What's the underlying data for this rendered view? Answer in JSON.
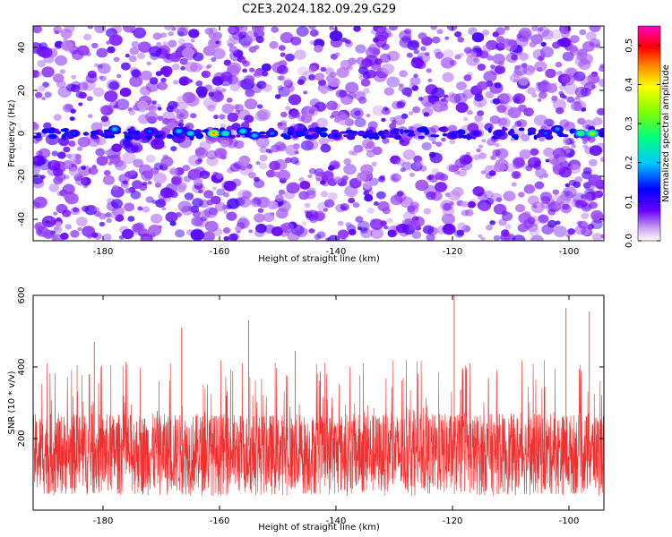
{
  "title": "C2E3.2024.182.09.29.G29",
  "chart_data": [
    {
      "type": "heatmap",
      "xlabel": "Height of straight line (km)",
      "ylabel": "Frequency (Hz)",
      "xlim": [
        -192,
        -94
      ],
      "ylim": [
        -50,
        50
      ],
      "x_ticks": [
        -180,
        -160,
        -140,
        -120,
        -100
      ],
      "y_ticks": [
        -40,
        -20,
        0,
        20,
        40
      ],
      "colorbar": {
        "label": "Normalized spectral amplitude",
        "range": [
          0.0,
          0.55
        ],
        "ticks": [
          0.0,
          0.1,
          0.2,
          0.3,
          0.4,
          0.5
        ],
        "colors": [
          "#ffffff",
          "#ab5ff0",
          "#6a00ff",
          "#0000ff",
          "#00c8ff",
          "#00ff80",
          "#80ff00",
          "#ffff00",
          "#ff8000",
          "#ff0000",
          "#ff00c0"
        ]
      },
      "background_level": 0.05,
      "signal_band_hz": 0,
      "peaks": [
        {
          "x": -185.0,
          "y": 0,
          "value": 0.15
        },
        {
          "x": -178.0,
          "y": 2,
          "value": 0.2
        },
        {
          "x": -172.0,
          "y": 1,
          "value": 0.16
        },
        {
          "x": -167.0,
          "y": 1,
          "value": 0.2
        },
        {
          "x": -165.0,
          "y": 0,
          "value": 0.22
        },
        {
          "x": -161.0,
          "y": 0,
          "value": 0.45
        },
        {
          "x": -159.0,
          "y": 0,
          "value": 0.25
        },
        {
          "x": -156.0,
          "y": 1,
          "value": 0.22
        },
        {
          "x": -154.0,
          "y": -1,
          "value": 0.2
        },
        {
          "x": -151.0,
          "y": 0,
          "value": 0.17
        },
        {
          "x": -140.0,
          "y": -1,
          "value": 0.13
        },
        {
          "x": -120.0,
          "y": -1,
          "value": 0.14
        },
        {
          "x": -116.0,
          "y": 0,
          "value": 0.12
        },
        {
          "x": -112.0,
          "y": 0,
          "value": 0.14
        },
        {
          "x": -104.0,
          "y": 0,
          "value": 0.16
        },
        {
          "x": -102.0,
          "y": 2,
          "value": 0.18
        },
        {
          "x": -98.0,
          "y": 0,
          "value": 0.3
        },
        {
          "x": -96.0,
          "y": 0,
          "value": 0.35
        }
      ]
    },
    {
      "type": "line",
      "xlabel": "Height of straight line (km)",
      "ylabel": "SNR (10 * v/v)",
      "xlim": [
        -192,
        -94
      ],
      "ylim": [
        0,
        600
      ],
      "x_ticks": [
        -180,
        -160,
        -140,
        -120,
        -100
      ],
      "y_ticks": [
        200,
        400,
        600
      ],
      "color": "#ee3030",
      "baseline_range": [
        40,
        270
      ],
      "notable_spikes": [
        {
          "x": -119.7,
          "y": 600
        },
        {
          "x": -155.0,
          "y": 530
        },
        {
          "x": -166.5,
          "y": 510
        },
        {
          "x": -100.5,
          "y": 565
        },
        {
          "x": -96.5,
          "y": 555
        },
        {
          "x": -181.5,
          "y": 470
        },
        {
          "x": -147.0,
          "y": 445
        }
      ]
    }
  ]
}
